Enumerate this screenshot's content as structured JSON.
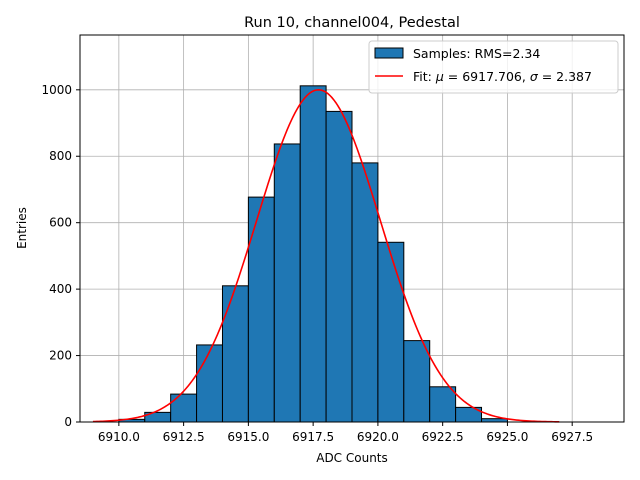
{
  "chart_data": {
    "type": "bar",
    "title": "Run 10, channel004, Pedestal",
    "xlabel": "ADC Counts",
    "ylabel": "Entries",
    "xlim": [
      6908.5,
      6929.5
    ],
    "ylim": [
      0,
      1165
    ],
    "xticks": [
      6910.0,
      6912.5,
      6915.0,
      6917.5,
      6920.0,
      6922.5,
      6925.0,
      6927.5
    ],
    "xtick_labels": [
      "6910.0",
      "6912.5",
      "6915.0",
      "6917.5",
      "6920.0",
      "6922.5",
      "6925.0",
      "6927.5"
    ],
    "yticks": [
      0,
      200,
      400,
      600,
      800,
      1000
    ],
    "ytick_labels": [
      "0",
      "200",
      "400",
      "600",
      "800",
      "1000"
    ],
    "grid": true,
    "legend_position": "top-right",
    "histogram": {
      "name": "Samples: RMS=2.34",
      "color": "#1f77b4",
      "bin_edges": [
        6910,
        6911,
        6912,
        6913,
        6914,
        6915,
        6916,
        6917,
        6918,
        6919,
        6920,
        6921,
        6922,
        6923,
        6924,
        6925
      ],
      "counts": [
        8,
        29,
        84,
        232,
        410,
        677,
        837,
        1012,
        935,
        780,
        541,
        245,
        106,
        44,
        10
      ]
    },
    "fit": {
      "name_prefix": "Fit: ",
      "name_mu": "μ",
      "name_mid": " = 6917.706, ",
      "name_sigma": "σ",
      "name_suffix": " = 2.387",
      "color": "#ff0000",
      "mu": 6917.706,
      "sigma": 2.387,
      "amplitude": 1000,
      "x_range": [
        6909.0,
        6927.0
      ]
    }
  }
}
